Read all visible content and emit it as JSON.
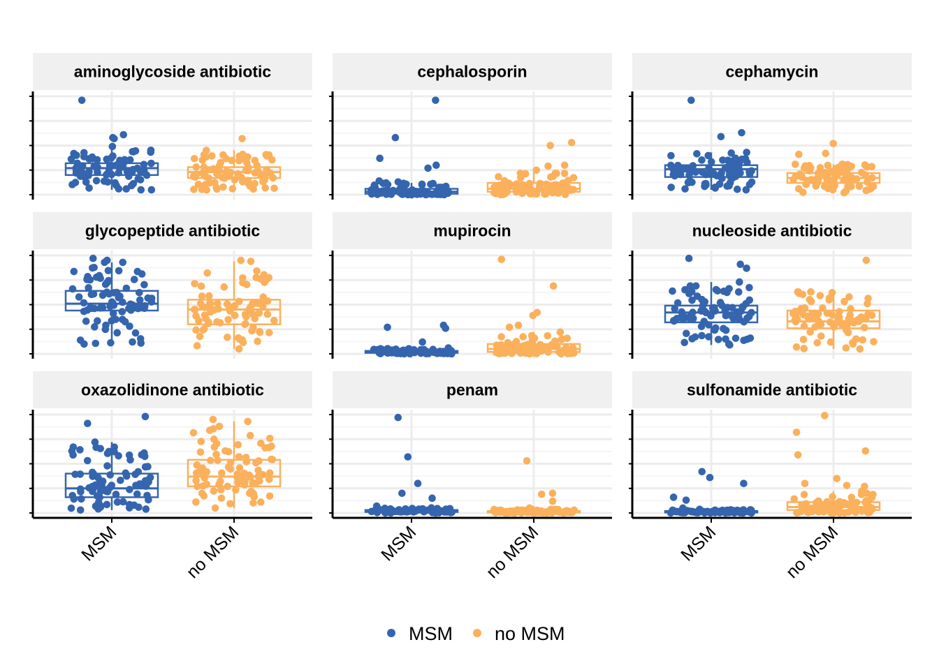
{
  "chart_data": {
    "type": "scatter",
    "subtype": "faceted jittered points with boxplots",
    "title": "",
    "xlabel": "",
    "ylabel": "",
    "y_axis_labels_shown": false,
    "grid": true,
    "legend": {
      "position": "bottom",
      "entries": [
        "MSM",
        "no MSM"
      ]
    },
    "categories": [
      "MSM",
      "no MSM"
    ],
    "colors": {
      "MSM": "#3465ae",
      "no MSM": "#fbb05c"
    },
    "facets": [
      {
        "name": "aminoglycoside antibiotic",
        "groups": [
          {
            "name": "MSM",
            "q1": 0.2,
            "median": 0.27,
            "q3": 0.32,
            "whisker_low": 0.05,
            "whisker_high": 0.49,
            "outliers": [
              0.96,
              0.61,
              0.58,
              0.57
            ]
          },
          {
            "name": "no MSM",
            "q1": 0.17,
            "median": 0.23,
            "q3": 0.28,
            "whisker_low": 0.05,
            "whisker_high": 0.45,
            "outliers": [
              0.57
            ]
          }
        ]
      },
      {
        "name": "cephalosporin",
        "groups": [
          {
            "name": "MSM",
            "q1": 0.01,
            "median": 0.03,
            "q3": 0.06,
            "whisker_low": 0.0,
            "whisker_high": 0.12,
            "outliers": [
              0.96,
              0.58,
              0.37,
              0.3,
              0.27,
              0.14,
              0.13
            ]
          },
          {
            "name": "no MSM",
            "q1": 0.03,
            "median": 0.06,
            "q3": 0.12,
            "whisker_low": 0.0,
            "whisker_high": 0.25,
            "outliers": [
              0.53,
              0.5,
              0.3,
              0.29
            ]
          }
        ]
      },
      {
        "name": "cephamycin",
        "groups": [
          {
            "name": "MSM",
            "q1": 0.18,
            "median": 0.26,
            "q3": 0.3,
            "whisker_low": 0.05,
            "whisker_high": 0.43,
            "outliers": [
              0.96,
              0.63,
              0.59
            ]
          },
          {
            "name": "no MSM",
            "q1": 0.12,
            "median": 0.17,
            "q3": 0.22,
            "whisker_low": 0.02,
            "whisker_high": 0.31,
            "outliers": [
              0.52,
              0.42,
              0.41
            ]
          }
        ]
      },
      {
        "name": "glycopeptide antibiotic",
        "groups": [
          {
            "name": "MSM",
            "q1": 0.44,
            "median": 0.51,
            "q3": 0.64,
            "whisker_low": 0.1,
            "whisker_high": 0.93,
            "outliers": [
              0.97,
              0.95,
              0.93
            ]
          },
          {
            "name": "no MSM",
            "q1": 0.3,
            "median": 0.45,
            "q3": 0.55,
            "whisker_low": 0.05,
            "whisker_high": 0.94,
            "outliers": [
              0.95
            ]
          }
        ]
      },
      {
        "name": "mupirocin",
        "groups": [
          {
            "name": "MSM",
            "q1": 0.01,
            "median": 0.02,
            "q3": 0.03,
            "whisker_low": 0.0,
            "whisker_high": 0.06,
            "outliers": [
              0.29,
              0.27,
              0.26,
              0.12
            ]
          },
          {
            "name": "no MSM",
            "q1": 0.02,
            "median": 0.05,
            "q3": 0.1,
            "whisker_low": 0.0,
            "whisker_high": 0.22,
            "outliers": [
              0.96,
              0.69,
              0.42,
              0.39,
              0.29,
              0.27
            ]
          }
        ]
      },
      {
        "name": "nucleoside antibiotic",
        "groups": [
          {
            "name": "MSM",
            "q1": 0.32,
            "median": 0.42,
            "q3": 0.49,
            "whisker_low": 0.09,
            "whisker_high": 0.73,
            "outliers": [
              0.97,
              0.91,
              0.87
            ]
          },
          {
            "name": "no MSM",
            "q1": 0.26,
            "median": 0.33,
            "q3": 0.44,
            "whisker_low": 0.05,
            "whisker_high": 0.63,
            "outliers": [
              0.95
            ]
          }
        ]
      },
      {
        "name": "oxazolidinone antibiotic",
        "groups": [
          {
            "name": "MSM",
            "q1": 0.16,
            "median": 0.25,
            "q3": 0.4,
            "whisker_low": 0.03,
            "whisker_high": 0.72,
            "outliers": [
              0.98,
              0.91
            ]
          },
          {
            "name": "no MSM",
            "q1": 0.27,
            "median": 0.37,
            "q3": 0.54,
            "whisker_low": 0.05,
            "whisker_high": 0.93,
            "outliers": [
              0.95,
              0.88
            ]
          }
        ]
      },
      {
        "name": "penam",
        "groups": [
          {
            "name": "MSM",
            "q1": 0.01,
            "median": 0.02,
            "q3": 0.03,
            "whisker_low": 0.0,
            "whisker_high": 0.07,
            "outliers": [
              0.97,
              0.57,
              0.3,
              0.2,
              0.15
            ]
          },
          {
            "name": "no MSM",
            "q1": 0.005,
            "median": 0.01,
            "q3": 0.02,
            "whisker_low": 0.0,
            "whisker_high": 0.05,
            "outliers": [
              0.53,
              0.2,
              0.19,
              0.12
            ]
          }
        ]
      },
      {
        "name": "sulfonamide antibiotic",
        "groups": [
          {
            "name": "MSM",
            "q1": 0.005,
            "median": 0.01,
            "q3": 0.02,
            "whisker_low": 0.0,
            "whisker_high": 0.05,
            "outliers": [
              0.42,
              0.36,
              0.3,
              0.16,
              0.13
            ]
          },
          {
            "name": "no MSM",
            "q1": 0.03,
            "median": 0.06,
            "q3": 0.11,
            "whisker_low": 0.0,
            "whisker_high": 0.22,
            "outliers": [
              0.99,
              0.82,
              0.63,
              0.59,
              0.35,
              0.3,
              0.28,
              0.27
            ]
          }
        ]
      }
    ]
  }
}
